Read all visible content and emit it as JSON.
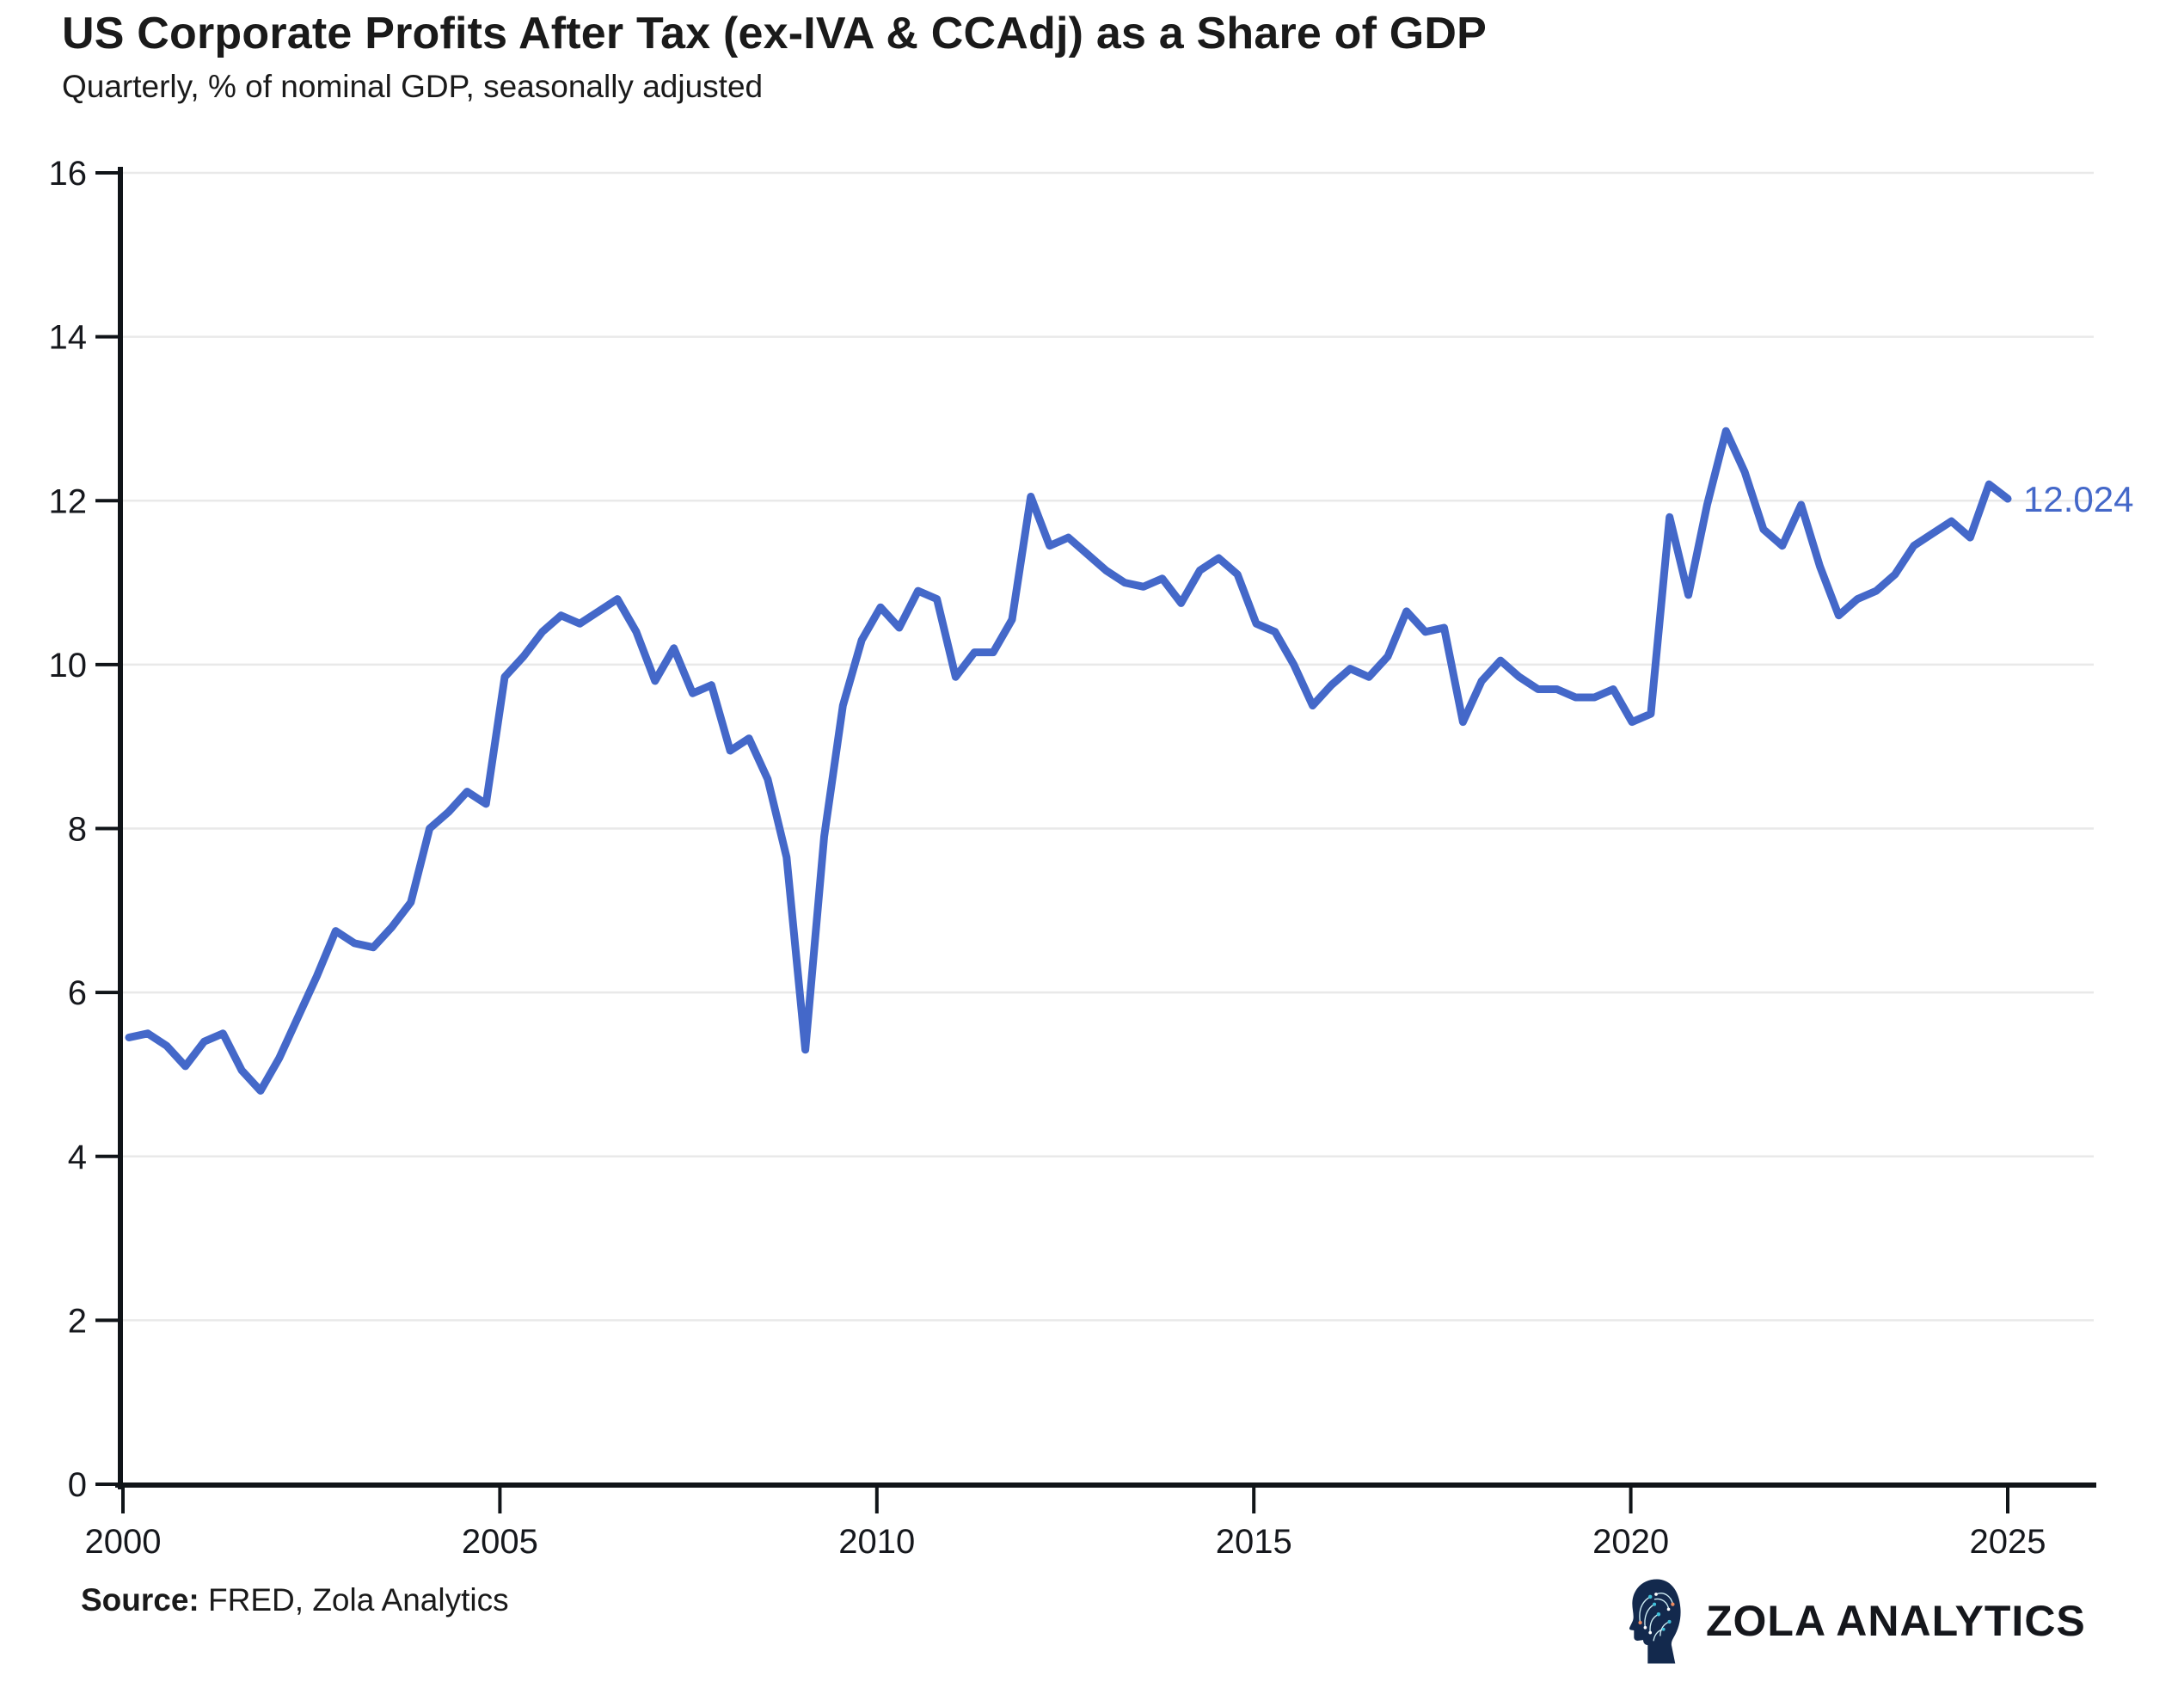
{
  "title": "US Corporate Profits After Tax (ex-IVA & CCAdj) as a Share of GDP",
  "subtitle": "Quarterly, % of nominal GDP, seasonally adjusted",
  "source": {
    "label": "Source:",
    "text": " FRED, Zola Analytics"
  },
  "brand": {
    "name": "ZOLA ANALYTICS",
    "icon": "circuit-head-icon"
  },
  "colors": {
    "line": "#4468C9",
    "end_label": "#4468C9",
    "grid": "#E9E9E9",
    "axis": "#101418",
    "text": "#1A1A1A",
    "logo_navy": "#13294D",
    "logo_teal": "#3FC1DA",
    "logo_orange": "#EE8A5F"
  },
  "chart_data": {
    "type": "line",
    "title": "US Corporate Profits After Tax (ex-IVA & CCAdj) as a Share of GDP",
    "subtitle": "Quarterly, % of nominal GDP, seasonally adjusted",
    "xlabel": "",
    "ylabel": "",
    "frequency": "quarterly",
    "x_start": "2000Q1",
    "x_end": "2025Q1",
    "x_ticks": [
      2000,
      2005,
      2010,
      2015,
      2020,
      2025
    ],
    "y_ticks": [
      0,
      2,
      4,
      6,
      8,
      10,
      12,
      14,
      16
    ],
    "ylim": [
      0,
      16
    ],
    "grid": "horizontal",
    "legend": "none",
    "last_value_label": "12.024",
    "series": [
      {
        "name": "Corporate profits after tax (ex-IVA & CCAdj), % of GDP",
        "values": [
          5.45,
          5.5,
          5.35,
          5.1,
          5.4,
          5.5,
          5.05,
          4.8,
          5.2,
          5.7,
          6.2,
          6.75,
          6.6,
          6.55,
          6.8,
          7.1,
          8.0,
          8.2,
          8.45,
          8.3,
          9.85,
          10.1,
          10.4,
          10.6,
          10.5,
          10.65,
          10.8,
          10.4,
          9.8,
          10.2,
          9.65,
          9.75,
          8.95,
          9.1,
          8.6,
          7.65,
          5.3,
          7.9,
          9.5,
          10.3,
          10.7,
          10.45,
          10.9,
          10.8,
          9.85,
          10.15,
          10.15,
          10.55,
          12.05,
          11.45,
          11.55,
          11.35,
          11.15,
          11.0,
          10.95,
          11.05,
          10.75,
          11.15,
          11.3,
          11.1,
          10.5,
          10.4,
          10.0,
          9.5,
          9.75,
          9.95,
          9.85,
          10.1,
          10.65,
          10.4,
          10.45,
          9.3,
          9.8,
          10.05,
          9.85,
          9.7,
          9.7,
          9.6,
          9.6,
          9.7,
          9.3,
          9.4,
          11.8,
          10.85,
          11.95,
          12.85,
          12.35,
          11.65,
          11.45,
          11.95,
          11.2,
          10.6,
          10.8,
          10.9,
          11.1,
          11.45,
          11.6,
          11.75,
          11.55,
          12.2,
          12.024
        ]
      }
    ]
  }
}
